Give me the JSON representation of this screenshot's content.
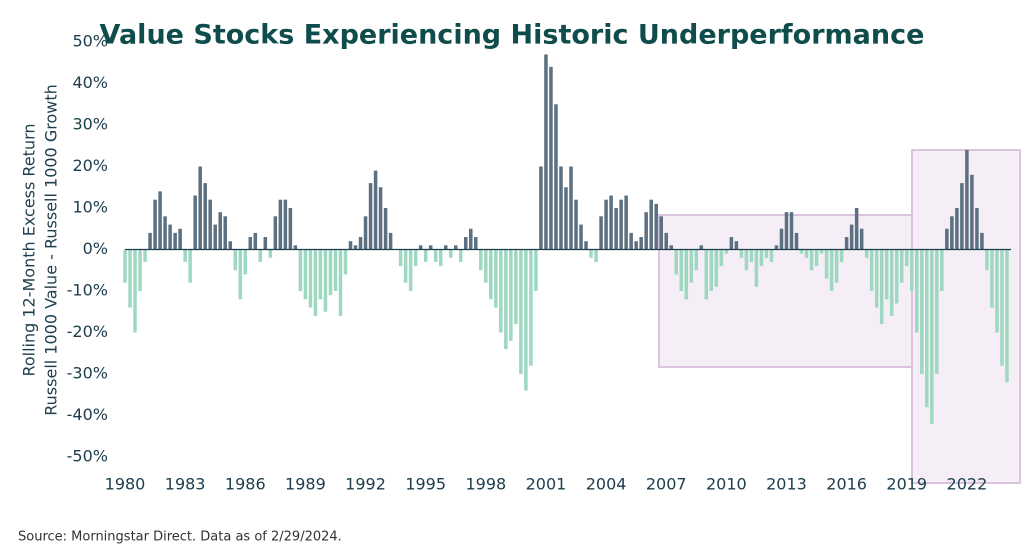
{
  "chart_data": {
    "type": "bar",
    "title": "Value Stocks Experiencing Historic Underperformance",
    "y_label": [
      "Rolling 12-Month Excess Return",
      "Russell 1000 Value - Russell 1000 Growth"
    ],
    "source": "Source: Morningstar Direct. Data as of 2/29/2024.",
    "positive_color": "#5b7080",
    "negative_color": "#9ed8c1",
    "xlim": [
      1980,
      2024.2
    ],
    "xticks": [
      1980,
      1983,
      1986,
      1989,
      1992,
      1995,
      1998,
      2001,
      2004,
      2007,
      2010,
      2013,
      2016,
      2019,
      2022
    ],
    "ylim": [
      -50,
      50
    ],
    "yticks": [
      {
        "value": -50,
        "label": "-50%"
      },
      {
        "value": -40,
        "label": "-40%"
      },
      {
        "value": -30,
        "label": "-30%"
      },
      {
        "value": -20,
        "label": "-20%"
      },
      {
        "value": -10,
        "label": "-10%"
      },
      {
        "value": 0,
        "label": "0%"
      },
      {
        "value": 10,
        "label": "10%"
      },
      {
        "value": 20,
        "label": "20%"
      },
      {
        "value": 30,
        "label": "30%"
      },
      {
        "value": 40,
        "label": "40%"
      },
      {
        "value": 50,
        "label": "50%"
      }
    ],
    "x": [
      1980,
      1980.25,
      1980.5,
      1980.75,
      1981,
      1981.25,
      1981.5,
      1981.75,
      1982,
      1982.25,
      1982.5,
      1982.75,
      1983,
      1983.25,
      1983.5,
      1983.75,
      1984,
      1984.25,
      1984.5,
      1984.75,
      1985,
      1985.25,
      1985.5,
      1985.75,
      1986,
      1986.25,
      1986.5,
      1986.75,
      1987,
      1987.25,
      1987.5,
      1987.75,
      1988,
      1988.25,
      1988.5,
      1988.75,
      1989,
      1989.25,
      1989.5,
      1989.75,
      1990,
      1990.25,
      1990.5,
      1990.75,
      1991,
      1991.25,
      1991.5,
      1991.75,
      1992,
      1992.25,
      1992.5,
      1992.75,
      1993,
      1993.25,
      1993.5,
      1993.75,
      1994,
      1994.25,
      1994.5,
      1994.75,
      1995,
      1995.25,
      1995.5,
      1995.75,
      1996,
      1996.25,
      1996.5,
      1996.75,
      1997,
      1997.25,
      1997.5,
      1997.75,
      1998,
      1998.25,
      1998.5,
      1998.75,
      1999,
      1999.25,
      1999.5,
      1999.75,
      2000,
      2000.25,
      2000.5,
      2000.75,
      2001,
      2001.25,
      2001.5,
      2001.75,
      2002,
      2002.25,
      2002.5,
      2002.75,
      2003,
      2003.25,
      2003.5,
      2003.75,
      2004,
      2004.25,
      2004.5,
      2004.75,
      2005,
      2005.25,
      2005.5,
      2005.75,
      2006,
      2006.25,
      2006.5,
      2006.75,
      2007,
      2007.25,
      2007.5,
      2007.75,
      2008,
      2008.25,
      2008.5,
      2008.75,
      2009,
      2009.25,
      2009.5,
      2009.75,
      2010,
      2010.25,
      2010.5,
      2010.75,
      2011,
      2011.25,
      2011.5,
      2011.75,
      2012,
      2012.25,
      2012.5,
      2012.75,
      2013,
      2013.25,
      2013.5,
      2013.75,
      2014,
      2014.25,
      2014.5,
      2014.75,
      2015,
      2015.25,
      2015.5,
      2015.75,
      2016,
      2016.25,
      2016.5,
      2016.75,
      2017,
      2017.25,
      2017.5,
      2017.75,
      2018,
      2018.25,
      2018.5,
      2018.75,
      2019,
      2019.25,
      2019.5,
      2019.75,
      2020,
      2020.25,
      2020.5,
      2020.75,
      2021,
      2021.25,
      2021.5,
      2021.75,
      2022,
      2022.25,
      2022.5,
      2022.75,
      2023,
      2023.25,
      2023.5,
      2023.75,
      2024
    ],
    "values": [
      -8,
      -14,
      -20,
      -10,
      -3,
      4,
      12,
      14,
      8,
      6,
      4,
      5,
      -3,
      -8,
      13,
      20,
      16,
      12,
      6,
      9,
      8,
      2,
      -5,
      -12,
      -6,
      3,
      4,
      -3,
      3,
      -2,
      8,
      12,
      12,
      10,
      1,
      -10,
      -12,
      -14,
      -16,
      -12,
      -15,
      -11,
      -10,
      -16,
      -6,
      2,
      1,
      3,
      8,
      16,
      19,
      15,
      10,
      4,
      0,
      -4,
      -8,
      -10,
      -4,
      1,
      -3,
      1,
      -3,
      -4,
      1,
      -2,
      1,
      -3,
      3,
      5,
      3,
      -5,
      -8,
      -12,
      -14,
      -20,
      -24,
      -22,
      -18,
      -30,
      -34,
      -28,
      -10,
      20,
      47,
      44,
      35,
      20,
      15,
      20,
      12,
      6,
      2,
      -2,
      -3,
      8,
      12,
      13,
      10,
      12,
      13,
      4,
      2,
      3,
      9,
      12,
      11,
      8,
      4,
      1,
      -6,
      -10,
      -12,
      -8,
      -5,
      1,
      -12,
      -10,
      -9,
      -4,
      -1,
      3,
      2,
      -2,
      -5,
      -3,
      -9,
      -4,
      -2,
      -3,
      1,
      5,
      9,
      9,
      4,
      -1,
      -2,
      -5,
      -4,
      -1,
      -7,
      -10,
      -8,
      -3,
      3,
      6,
      10,
      5,
      -2,
      -10,
      -14,
      -18,
      -12,
      -16,
      -13,
      -8,
      -4,
      -10,
      -20,
      -30,
      -38,
      -42,
      -30,
      -10,
      5,
      8,
      10,
      16,
      24,
      18,
      10,
      4,
      -5,
      -14,
      -20,
      -28,
      -32
    ]
  }
}
